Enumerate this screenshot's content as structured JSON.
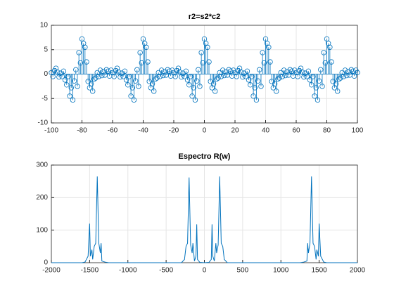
{
  "chart_data": [
    {
      "type": "stem",
      "title": "r2=s2*c2",
      "color": "#0072bd",
      "grid": true,
      "xlim": [
        -100,
        100
      ],
      "xticks": [
        -100,
        -80,
        -60,
        -40,
        -20,
        0,
        20,
        40,
        60,
        80,
        100
      ],
      "ylim": [
        -10,
        10
      ],
      "yticks": [
        -10,
        -5,
        0,
        5,
        10
      ],
      "x": [
        -100,
        -99,
        -98,
        -97,
        -96,
        -95,
        -94,
        -93,
        -92,
        -91,
        -90,
        -89,
        -88,
        -87,
        -86,
        -85,
        -84,
        -83,
        -82,
        -81,
        -80,
        -79,
        -78,
        -77,
        -76,
        -75,
        -74,
        -73,
        -72,
        -71,
        -70,
        -69,
        -68,
        -67,
        -66,
        -65,
        -64,
        -63,
        -62,
        -61,
        -60,
        -59,
        -58,
        -57,
        -56,
        -55,
        -54,
        -53,
        -52,
        -51,
        -50,
        -49,
        -48,
        -47,
        -46,
        -45,
        -44,
        -43,
        -42,
        -41,
        -40,
        -39,
        -38,
        -37,
        -36,
        -35,
        -34,
        -33,
        -32,
        -31,
        -30,
        -29,
        -28,
        -27,
        -26,
        -25,
        -24,
        -23,
        -22,
        -21,
        -20,
        -19,
        -18,
        -17,
        -16,
        -15,
        -14,
        -13,
        -12,
        -11,
        -10,
        -9,
        -8,
        -7,
        -6,
        -5,
        -4,
        -3,
        -2,
        -1,
        0,
        1,
        2,
        3,
        4,
        5,
        6,
        7,
        8,
        9,
        10,
        11,
        12,
        13,
        14,
        15,
        16,
        17,
        18,
        19,
        20,
        21,
        22,
        23,
        24,
        25,
        26,
        27,
        28,
        29,
        30,
        31,
        32,
        33,
        34,
        35,
        36,
        37,
        38,
        39,
        40,
        41,
        42,
        43,
        44,
        45,
        46,
        47,
        48,
        49,
        50,
        51,
        52,
        53,
        54,
        55,
        56,
        57,
        58,
        59,
        60,
        61,
        62,
        63,
        64,
        65,
        66,
        67,
        68,
        69,
        70,
        71,
        72,
        73,
        74,
        75,
        76,
        77,
        78,
        79,
        80,
        81,
        82,
        83,
        84,
        85,
        86,
        87,
        88,
        89,
        90,
        91,
        92,
        93,
        94,
        95,
        96,
        97,
        98,
        99,
        100
      ],
      "values": [
        0.3,
        -0.5,
        0.7,
        1.2,
        0.4,
        -0.6,
        0.2,
        -0.5,
        0.6,
        -1.2,
        -2.2,
        -0.5,
        -4.5,
        -2.8,
        -5.3,
        -1.4,
        0.9,
        -2.5,
        4.4,
        2.3,
        7.2,
        6.3,
        5.5,
        2.5,
        -1.5,
        -2.8,
        -2,
        -3.5,
        -1,
        -0.8,
        0.3,
        -0.5,
        0.8,
        -0.3,
        0.5,
        -0.2,
        0.9,
        0.6,
        -0.4,
        0.8,
        0.3,
        -0.5,
        0.7,
        1.2,
        0.4,
        -0.6,
        0.2,
        -0.5,
        0.6,
        -1.2,
        -2.2,
        -0.5,
        -4.5,
        -2.8,
        -5.3,
        -1.4,
        0.9,
        -2.5,
        4.4,
        2.3,
        7.2,
        6.3,
        5.5,
        2.5,
        -1.5,
        -2.8,
        -2,
        -3.5,
        -1,
        -0.8,
        0.3,
        -0.5,
        0.8,
        -0.3,
        0.5,
        -0.2,
        0.9,
        0.6,
        -0.4,
        0.8,
        0.3,
        -0.5,
        0.7,
        1.2,
        0.4,
        -0.6,
        0.2,
        -0.5,
        0.6,
        -1.2,
        -2.2,
        -0.5,
        -4.5,
        -2.8,
        -5.3,
        -1.4,
        0.9,
        -2.5,
        4.4,
        2.3,
        7.2,
        6.3,
        5.5,
        2.5,
        -1.5,
        -2.8,
        -2,
        -3.5,
        -1,
        -0.8,
        0.3,
        -0.5,
        0.8,
        -0.3,
        0.5,
        -0.2,
        0.9,
        0.6,
        -0.4,
        0.8,
        0.3,
        -0.5,
        0.7,
        1.2,
        0.4,
        -0.6,
        0.2,
        -0.5,
        0.6,
        -1.2,
        -2.2,
        -0.5,
        -4.5,
        -2.8,
        -5.3,
        -1.4,
        0.9,
        -2.5,
        4.4,
        2.3,
        7.2,
        6.3,
        5.5,
        2.5,
        -1.5,
        -2.8,
        -2,
        -3.5,
        -1,
        -0.8,
        0.3,
        -0.5,
        0.8,
        -0.3,
        0.5,
        -0.2,
        0.9,
        0.6,
        -0.4,
        0.8,
        0.3,
        -0.5,
        0.7,
        1.2,
        0.4,
        -0.6,
        0.2,
        -0.5,
        0.6,
        -1.2,
        -2.2,
        -0.5,
        -4.5,
        -2.8,
        -5.3,
        -1.4,
        0.9,
        -2.5,
        4.4,
        2.3,
        7.2,
        6.3,
        5.5,
        2.5,
        -1.5,
        -2.8,
        -2,
        -3.5,
        -1,
        -0.8,
        0.3,
        -0.5,
        0.8,
        -0.3,
        0.5,
        -0.2,
        0.9,
        0.6,
        -0.4,
        0.8,
        0.3
      ]
    },
    {
      "type": "line",
      "title": "Espectro R(w)",
      "color": "#0072bd",
      "grid": true,
      "xlim": [
        -2000,
        2000
      ],
      "xticks": [
        -2000,
        -1500,
        -1000,
        -500,
        0,
        500,
        1000,
        1500,
        2000
      ],
      "ylim": [
        0,
        300
      ],
      "yticks": [
        0,
        100,
        200,
        300
      ],
      "x": [
        -2000,
        -1600,
        -1560,
        -1520,
        -1500,
        -1490,
        -1470,
        -1460,
        -1440,
        -1420,
        -1400,
        -1380,
        -1360,
        -1350,
        -1340,
        -1300,
        -1250,
        -300,
        -260,
        -240,
        -220,
        -200,
        -180,
        -160,
        -150,
        -130,
        -110,
        -100,
        -90,
        -60,
        0,
        60,
        90,
        100,
        110,
        130,
        150,
        160,
        180,
        200,
        220,
        240,
        260,
        300,
        1250,
        1300,
        1340,
        1350,
        1360,
        1380,
        1400,
        1420,
        1440,
        1460,
        1470,
        1490,
        1500,
        1520,
        1560,
        1600,
        2000
      ],
      "values": [
        0,
        0,
        2,
        20,
        120,
        20,
        40,
        10,
        50,
        60,
        265,
        60,
        30,
        60,
        5,
        2,
        0,
        0,
        10,
        50,
        60,
        262,
        55,
        30,
        60,
        5,
        20,
        118,
        10,
        1,
        0,
        1,
        10,
        118,
        20,
        5,
        60,
        30,
        55,
        265,
        60,
        50,
        10,
        0,
        0,
        2,
        5,
        60,
        30,
        60,
        265,
        60,
        50,
        10,
        40,
        20,
        120,
        20,
        2,
        0,
        0
      ]
    }
  ]
}
